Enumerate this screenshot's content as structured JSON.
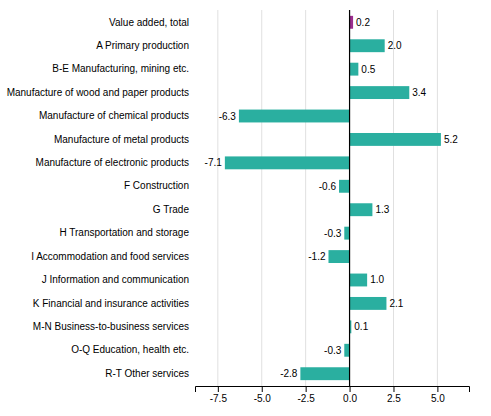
{
  "chart_data": {
    "type": "bar",
    "orientation": "horizontal",
    "categories": [
      "R-T Other services",
      "O-Q Education, health etc.",
      "M-N Business-to-business services",
      "K Financial and insurance activities",
      "J Information and communication",
      "I Accommodation and food services",
      "H Transportation and storage",
      "G Trade",
      "F Construction",
      "Manufacture of electronic products",
      "Manufacture of metal products",
      "Manufacture of chemical products",
      "Manufacture of wood and paper products",
      "B-E Manufacturing, mining etc.",
      "A Primary production",
      "Value added, total"
    ],
    "values": [
      -2.8,
      -0.3,
      0.1,
      2.1,
      1.0,
      -1.2,
      -0.3,
      1.3,
      -0.6,
      -7.1,
      5.2,
      -6.3,
      3.4,
      0.5,
      2.0,
      0.2
    ],
    "value_labels": [
      "-2.8",
      "-0.3",
      "0.1",
      "2.1",
      "1.0",
      "-1.2",
      "-0.3",
      "1.3",
      "-0.6",
      "-7.1",
      "5.2",
      "-6.3",
      "3.4",
      "0.5",
      "2.0",
      "0.2"
    ],
    "colors": [
      "#2aafa0",
      "#2aafa0",
      "#2aafa0",
      "#2aafa0",
      "#2aafa0",
      "#2aafa0",
      "#2aafa0",
      "#2aafa0",
      "#2aafa0",
      "#2aafa0",
      "#2aafa0",
      "#2aafa0",
      "#2aafa0",
      "#2aafa0",
      "#2aafa0",
      "#9b2d8e"
    ],
    "xlim": [
      -8.8,
      6.8
    ],
    "xticks": [
      -7.5,
      {
        "value": -5,
        "label": "-5.0"
      },
      -2.5,
      {
        "value": 0,
        "label": "0.0"
      },
      2.5,
      {
        "value": 5,
        "label": "5.0"
      }
    ],
    "grid": true,
    "data_labels": true
  }
}
